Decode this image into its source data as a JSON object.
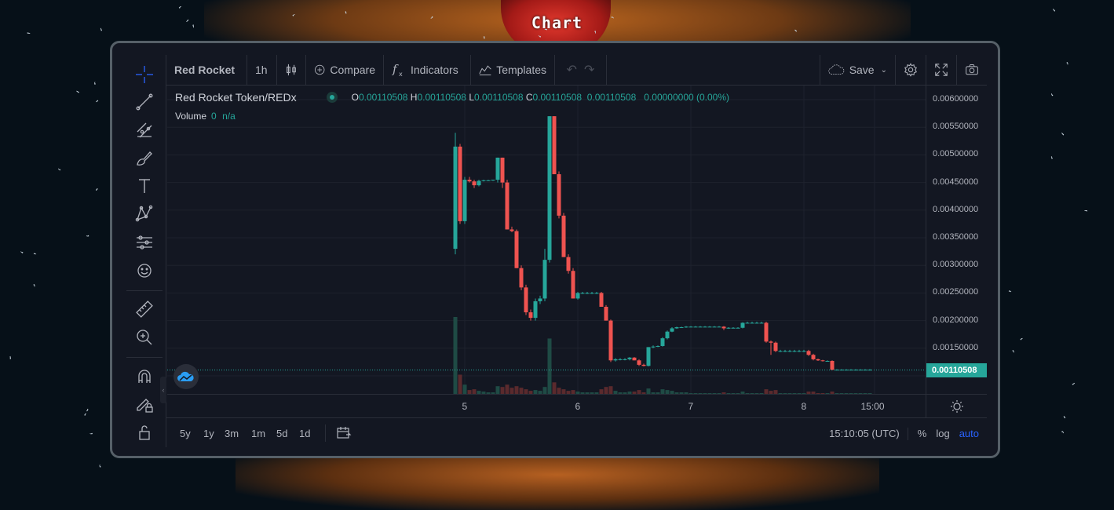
{
  "page": {
    "title": "Chart"
  },
  "toolbar": {
    "symbol": "Red Rocket",
    "interval": "1h",
    "compare": "Compare",
    "indicators": "Indicators",
    "templates": "Templates",
    "save": "Save"
  },
  "legend": {
    "pair": "Red Rocket Token/REDx",
    "o_label": "O",
    "o_value": "0.00110508",
    "h_label": "H",
    "h_value": "0.00110508",
    "l_label": "L",
    "l_value": "0.00110508",
    "c_label": "C",
    "c_value": "0.00110508",
    "last": "0.00110508",
    "change": "0.00000000 (0.00%)",
    "volume_label": "Volume",
    "volume_value": "0",
    "volume_na": "n/a"
  },
  "colors": {
    "up": "#26a69a",
    "down": "#ef5350",
    "accent": "#2962ff"
  },
  "chart_data": {
    "type": "candlestick",
    "y_ticks": [
      "0.00600000",
      "0.00550000",
      "0.00500000",
      "0.00450000",
      "0.00400000",
      "0.00350000",
      "0.00300000",
      "0.00250000",
      "0.00200000",
      "0.00150000",
      "0.00100000"
    ],
    "ylim": [
      0.00098,
      0.006
    ],
    "last_price": "0.00110508",
    "x_ticks": [
      {
        "label": "5",
        "t": 0
      },
      {
        "label": "6",
        "t": 24
      },
      {
        "label": "7",
        "t": 48
      },
      {
        "label": "8",
        "t": 72
      },
      {
        "label": "15:00",
        "t": 87
      }
    ],
    "candles": [
      {
        "t": -2,
        "o": 0.0033,
        "h": 0.0054,
        "l": 0.0032,
        "c": 0.00515,
        "v": 1.0
      },
      {
        "t": -1,
        "o": 0.00515,
        "h": 0.0052,
        "l": 0.00375,
        "c": 0.0038,
        "v": 0.25
      },
      {
        "t": 0,
        "o": 0.0038,
        "h": 0.0046,
        "l": 0.00375,
        "c": 0.00455,
        "v": 0.12
      },
      {
        "t": 1,
        "o": 0.00455,
        "h": 0.0046,
        "l": 0.0045,
        "c": 0.00452,
        "v": 0.05
      },
      {
        "t": 2,
        "o": 0.00452,
        "h": 0.00455,
        "l": 0.0044,
        "c": 0.00445,
        "v": 0.06
      },
      {
        "t": 3,
        "o": 0.00445,
        "h": 0.00455,
        "l": 0.00443,
        "c": 0.00453,
        "v": 0.04
      },
      {
        "t": 4,
        "o": 0.00453,
        "h": 0.00455,
        "l": 0.00452,
        "c": 0.00454,
        "v": 0.03
      },
      {
        "t": 5,
        "o": 0.00454,
        "h": 0.00455,
        "l": 0.00453,
        "c": 0.00454,
        "v": 0.02
      },
      {
        "t": 6,
        "o": 0.00454,
        "h": 0.00455,
        "l": 0.00453,
        "c": 0.00455,
        "v": 0.02
      },
      {
        "t": 7,
        "o": 0.00455,
        "h": 0.00495,
        "l": 0.0045,
        "c": 0.00495,
        "v": 0.1
      },
      {
        "t": 8,
        "o": 0.00495,
        "h": 0.00495,
        "l": 0.0044,
        "c": 0.0045,
        "v": 0.09
      },
      {
        "t": 9,
        "o": 0.0045,
        "h": 0.00455,
        "l": 0.00365,
        "c": 0.00365,
        "v": 0.12
      },
      {
        "t": 10,
        "o": 0.00365,
        "h": 0.0037,
        "l": 0.0036,
        "c": 0.00362,
        "v": 0.08
      },
      {
        "t": 11,
        "o": 0.00362,
        "h": 0.00365,
        "l": 0.00295,
        "c": 0.00295,
        "v": 0.1
      },
      {
        "t": 12,
        "o": 0.00295,
        "h": 0.003,
        "l": 0.00255,
        "c": 0.0026,
        "v": 0.08
      },
      {
        "t": 13,
        "o": 0.0026,
        "h": 0.00265,
        "l": 0.0021,
        "c": 0.00215,
        "v": 0.06
      },
      {
        "t": 14,
        "o": 0.00215,
        "h": 0.0022,
        "l": 0.002,
        "c": 0.00205,
        "v": 0.04
      },
      {
        "t": 15,
        "o": 0.00205,
        "h": 0.0024,
        "l": 0.002,
        "c": 0.00235,
        "v": 0.05
      },
      {
        "t": 16,
        "o": 0.00235,
        "h": 0.00245,
        "l": 0.0023,
        "c": 0.0024,
        "v": 0.04
      },
      {
        "t": 17,
        "o": 0.0024,
        "h": 0.0033,
        "l": 0.00235,
        "c": 0.0031,
        "v": 0.09
      },
      {
        "t": 18,
        "o": 0.0031,
        "h": 0.0057,
        "l": 0.00305,
        "c": 0.0057,
        "v": 0.72
      },
      {
        "t": 19,
        "o": 0.0057,
        "h": 0.0057,
        "l": 0.00465,
        "c": 0.00465,
        "v": 0.15
      },
      {
        "t": 20,
        "o": 0.00465,
        "h": 0.0047,
        "l": 0.00385,
        "c": 0.0039,
        "v": 0.08
      },
      {
        "t": 21,
        "o": 0.0039,
        "h": 0.00395,
        "l": 0.00315,
        "c": 0.00315,
        "v": 0.06
      },
      {
        "t": 22,
        "o": 0.00315,
        "h": 0.0032,
        "l": 0.00285,
        "c": 0.0029,
        "v": 0.04
      },
      {
        "t": 23,
        "o": 0.0029,
        "h": 0.00295,
        "l": 0.0024,
        "c": 0.0024,
        "v": 0.05
      },
      {
        "t": 24,
        "o": 0.0024,
        "h": 0.00252,
        "l": 0.00238,
        "c": 0.0025,
        "v": 0.03
      },
      {
        "t": 25,
        "o": 0.0025,
        "h": 0.00252,
        "l": 0.00248,
        "c": 0.0025,
        "v": 0.02
      },
      {
        "t": 26,
        "o": 0.0025,
        "h": 0.00252,
        "l": 0.00248,
        "c": 0.0025,
        "v": 0.02
      },
      {
        "t": 27,
        "o": 0.0025,
        "h": 0.00252,
        "l": 0.00248,
        "c": 0.0025,
        "v": 0.02
      },
      {
        "t": 28,
        "o": 0.0025,
        "h": 0.00252,
        "l": 0.00248,
        "c": 0.0025,
        "v": 0.02
      },
      {
        "t": 29,
        "o": 0.0025,
        "h": 0.00252,
        "l": 0.00225,
        "c": 0.00225,
        "v": 0.06
      },
      {
        "t": 30,
        "o": 0.00225,
        "h": 0.00228,
        "l": 0.002,
        "c": 0.002,
        "v": 0.09
      },
      {
        "t": 31,
        "o": 0.002,
        "h": 0.00202,
        "l": 0.00125,
        "c": 0.00128,
        "v": 0.1
      },
      {
        "t": 32,
        "o": 0.00128,
        "h": 0.00132,
        "l": 0.00126,
        "c": 0.0013,
        "v": 0.04
      },
      {
        "t": 33,
        "o": 0.0013,
        "h": 0.00132,
        "l": 0.00128,
        "c": 0.0013,
        "v": 0.02
      },
      {
        "t": 34,
        "o": 0.0013,
        "h": 0.00132,
        "l": 0.00128,
        "c": 0.0013,
        "v": 0.02
      },
      {
        "t": 35,
        "o": 0.0013,
        "h": 0.00134,
        "l": 0.00128,
        "c": 0.00133,
        "v": 0.03
      },
      {
        "t": 36,
        "o": 0.00133,
        "h": 0.00134,
        "l": 0.00128,
        "c": 0.00128,
        "v": 0.03
      },
      {
        "t": 37,
        "o": 0.00128,
        "h": 0.0013,
        "l": 0.00118,
        "c": 0.0012,
        "v": 0.05
      },
      {
        "t": 38,
        "o": 0.0012,
        "h": 0.00122,
        "l": 0.00117,
        "c": 0.00118,
        "v": 0.02
      },
      {
        "t": 39,
        "o": 0.00118,
        "h": 0.00152,
        "l": 0.00117,
        "c": 0.00152,
        "v": 0.07
      },
      {
        "t": 40,
        "o": 0.00152,
        "h": 0.00155,
        "l": 0.0015,
        "c": 0.00153,
        "v": 0.02
      },
      {
        "t": 41,
        "o": 0.00153,
        "h": 0.00155,
        "l": 0.00152,
        "c": 0.00154,
        "v": 0.02
      },
      {
        "t": 42,
        "o": 0.00154,
        "h": 0.0017,
        "l": 0.00153,
        "c": 0.00168,
        "v": 0.06
      },
      {
        "t": 43,
        "o": 0.00168,
        "h": 0.00182,
        "l": 0.00166,
        "c": 0.0018,
        "v": 0.05
      },
      {
        "t": 44,
        "o": 0.0018,
        "h": 0.00188,
        "l": 0.00179,
        "c": 0.00186,
        "v": 0.04
      },
      {
        "t": 45,
        "o": 0.00186,
        "h": 0.00189,
        "l": 0.00185,
        "c": 0.00188,
        "v": 0.02
      },
      {
        "t": 46,
        "o": 0.00188,
        "h": 0.00189,
        "l": 0.00187,
        "c": 0.00188,
        "v": 0.02
      },
      {
        "t": 47,
        "o": 0.00188,
        "h": 0.0019,
        "l": 0.00187,
        "c": 0.00189,
        "v": 0.02
      },
      {
        "t": 48,
        "o": 0.00189,
        "h": 0.0019,
        "l": 0.00188,
        "c": 0.00189,
        "v": 0.01
      },
      {
        "t": 49,
        "o": 0.00189,
        "h": 0.0019,
        "l": 0.00188,
        "c": 0.00189,
        "v": 0.01
      },
      {
        "t": 50,
        "o": 0.00189,
        "h": 0.0019,
        "l": 0.00188,
        "c": 0.00189,
        "v": 0.01
      },
      {
        "t": 51,
        "o": 0.00189,
        "h": 0.0019,
        "l": 0.00188,
        "c": 0.00189,
        "v": 0.01
      },
      {
        "t": 52,
        "o": 0.00189,
        "h": 0.0019,
        "l": 0.00188,
        "c": 0.00189,
        "v": 0.01
      },
      {
        "t": 53,
        "o": 0.00189,
        "h": 0.0019,
        "l": 0.00188,
        "c": 0.00189,
        "v": 0.01
      },
      {
        "t": 54,
        "o": 0.00189,
        "h": 0.0019,
        "l": 0.00188,
        "c": 0.00189,
        "v": 0.01
      },
      {
        "t": 55,
        "o": 0.00189,
        "h": 0.0019,
        "l": 0.00183,
        "c": 0.00186,
        "v": 0.02
      },
      {
        "t": 56,
        "o": 0.00186,
        "h": 0.00188,
        "l": 0.00185,
        "c": 0.00187,
        "v": 0.01
      },
      {
        "t": 57,
        "o": 0.00187,
        "h": 0.00188,
        "l": 0.00186,
        "c": 0.00187,
        "v": 0.01
      },
      {
        "t": 58,
        "o": 0.00187,
        "h": 0.00188,
        "l": 0.00186,
        "c": 0.00187,
        "v": 0.01
      },
      {
        "t": 59,
        "o": 0.00187,
        "h": 0.00197,
        "l": 0.00186,
        "c": 0.00196,
        "v": 0.03
      },
      {
        "t": 60,
        "o": 0.00196,
        "h": 0.00198,
        "l": 0.00195,
        "c": 0.00196,
        "v": 0.01
      },
      {
        "t": 61,
        "o": 0.00196,
        "h": 0.00198,
        "l": 0.00195,
        "c": 0.00196,
        "v": 0.01
      },
      {
        "t": 62,
        "o": 0.00196,
        "h": 0.00198,
        "l": 0.00195,
        "c": 0.00196,
        "v": 0.01
      },
      {
        "t": 63,
        "o": 0.00196,
        "h": 0.00198,
        "l": 0.00195,
        "c": 0.00196,
        "v": 0.01
      },
      {
        "t": 64,
        "o": 0.00196,
        "h": 0.00198,
        "l": 0.0016,
        "c": 0.00162,
        "v": 0.06
      },
      {
        "t": 65,
        "o": 0.00162,
        "h": 0.00164,
        "l": 0.00138,
        "c": 0.0016,
        "v": 0.04
      },
      {
        "t": 66,
        "o": 0.0016,
        "h": 0.00162,
        "l": 0.00143,
        "c": 0.00145,
        "v": 0.05
      },
      {
        "t": 67,
        "o": 0.00145,
        "h": 0.00147,
        "l": 0.00143,
        "c": 0.00145,
        "v": 0.01
      },
      {
        "t": 68,
        "o": 0.00145,
        "h": 0.00147,
        "l": 0.00143,
        "c": 0.00145,
        "v": 0.01
      },
      {
        "t": 69,
        "o": 0.00145,
        "h": 0.00147,
        "l": 0.00143,
        "c": 0.00145,
        "v": 0.01
      },
      {
        "t": 70,
        "o": 0.00145,
        "h": 0.00147,
        "l": 0.00143,
        "c": 0.00145,
        "v": 0.01
      },
      {
        "t": 71,
        "o": 0.00145,
        "h": 0.00147,
        "l": 0.00143,
        "c": 0.00145,
        "v": 0.01
      },
      {
        "t": 72,
        "o": 0.00145,
        "h": 0.00147,
        "l": 0.00143,
        "c": 0.00145,
        "v": 0.01
      },
      {
        "t": 73,
        "o": 0.00145,
        "h": 0.00147,
        "l": 0.00136,
        "c": 0.00138,
        "v": 0.03
      },
      {
        "t": 74,
        "o": 0.00138,
        "h": 0.0014,
        "l": 0.00128,
        "c": 0.0013,
        "v": 0.03
      },
      {
        "t": 75,
        "o": 0.0013,
        "h": 0.00131,
        "l": 0.00127,
        "c": 0.00128,
        "v": 0.01
      },
      {
        "t": 76,
        "o": 0.00128,
        "h": 0.00129,
        "l": 0.00126,
        "c": 0.00127,
        "v": 0.01
      },
      {
        "t": 77,
        "o": 0.00127,
        "h": 0.00128,
        "l": 0.00126,
        "c": 0.00127,
        "v": 0.01
      },
      {
        "t": 78,
        "o": 0.00127,
        "h": 0.00128,
        "l": 0.0011,
        "c": 0.00111,
        "v": 0.03
      },
      {
        "t": 79,
        "o": 0.00111,
        "h": 0.00112,
        "l": 0.0011,
        "c": 0.00111,
        "v": 0.01
      },
      {
        "t": 80,
        "o": 0.00111,
        "h": 0.00112,
        "l": 0.0011,
        "c": 0.00111,
        "v": 0.01
      },
      {
        "t": 81,
        "o": 0.00111,
        "h": 0.00112,
        "l": 0.0011,
        "c": 0.00111,
        "v": 0.01
      },
      {
        "t": 82,
        "o": 0.00111,
        "h": 0.00112,
        "l": 0.0011,
        "c": 0.00111,
        "v": 0.01
      },
      {
        "t": 83,
        "o": 0.00111,
        "h": 0.00112,
        "l": 0.0011,
        "c": 0.00111,
        "v": 0.01
      },
      {
        "t": 84,
        "o": 0.00111,
        "h": 0.00112,
        "l": 0.0011,
        "c": 0.00111,
        "v": 0.01
      },
      {
        "t": 85,
        "o": 0.00111,
        "h": 0.00112,
        "l": 0.0011,
        "c": 0.00111,
        "v": 0.01
      },
      {
        "t": 86,
        "o": 0.00111,
        "h": 0.00112,
        "l": 0.0011,
        "c": 0.00111,
        "v": 0.01
      }
    ]
  },
  "bottombar": {
    "ranges": [
      "5y",
      "1y",
      "3m",
      "1m",
      "5d",
      "1d"
    ],
    "time": "15:10:05 (UTC)",
    "percent": "%",
    "log": "log",
    "auto": "auto"
  },
  "icons": {
    "sidebar": [
      "crosshair-icon",
      "trend-line-icon",
      "fib-icon",
      "brush-icon",
      "text-icon",
      "pattern-icon",
      "prediction-icon",
      "emoji-icon",
      "ruler-icon",
      "zoom-in-icon",
      "magnet-icon",
      "lock-drawing-icon",
      "lock-icon"
    ]
  }
}
